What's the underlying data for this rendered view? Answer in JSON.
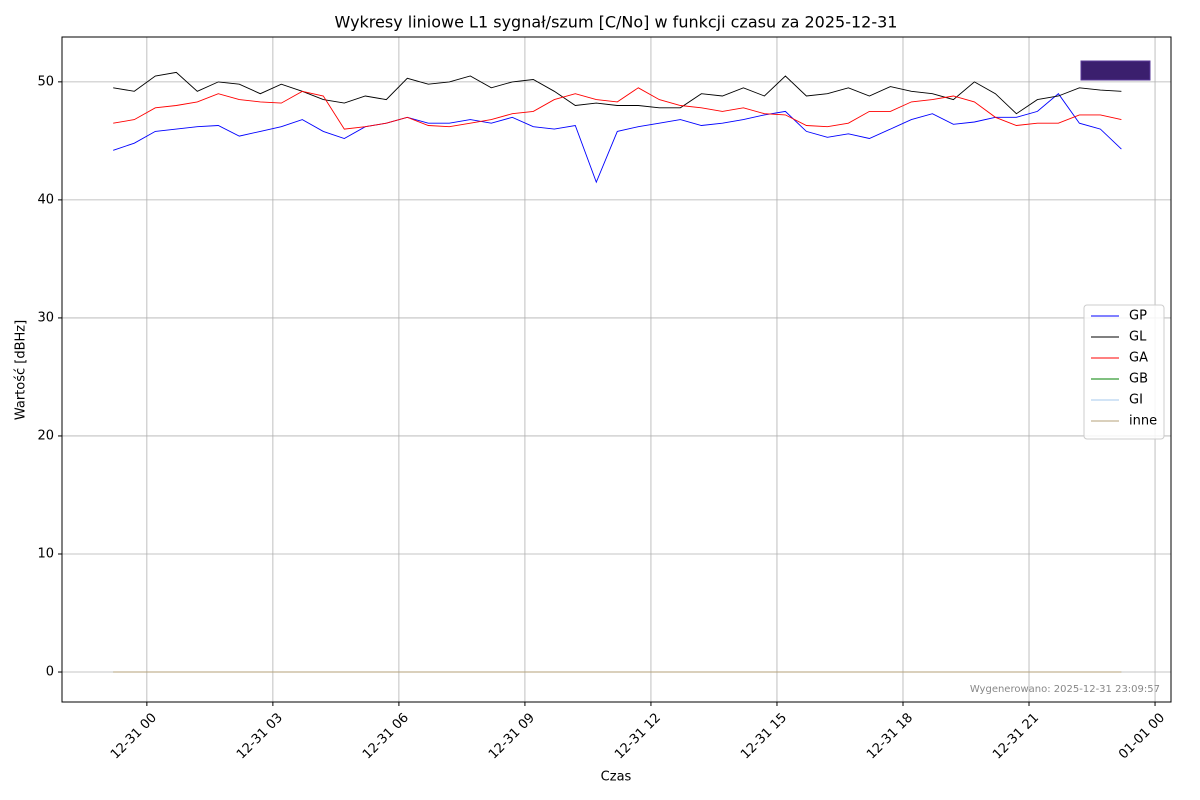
{
  "chart_data": {
    "type": "line",
    "title": "Wykresy liniowe L1 sygnał/szum [C/No] w funkcji czasu za 2025-12-31",
    "xlabel": "Czas",
    "ylabel": "Wartość [dBHz]",
    "annotation": "Wygenerowano: 2025-12-31 23:09:57",
    "x": [
      -0.8,
      -0.3,
      0.2,
      0.7,
      1.2,
      1.7,
      2.2,
      2.7,
      3.2,
      3.7,
      4.2,
      4.7,
      5.2,
      5.7,
      6.2,
      6.7,
      7.2,
      7.7,
      8.2,
      8.7,
      9.2,
      9.7,
      10.2,
      10.7,
      11.2,
      11.7,
      12.2,
      12.7,
      13.2,
      13.7,
      14.2,
      14.7,
      15.2,
      15.7,
      16.2,
      16.7,
      17.2,
      17.7,
      18.2,
      18.7,
      19.2,
      19.7,
      20.2,
      20.7,
      21.2,
      21.7,
      22.2,
      22.7,
      23.2
    ],
    "series": [
      {
        "name": "GP",
        "color": "#0000ff",
        "values": [
          44.2,
          44.8,
          45.8,
          46.0,
          46.2,
          46.3,
          45.4,
          45.8,
          46.2,
          46.8,
          45.8,
          45.2,
          46.2,
          46.5,
          47.0,
          46.5,
          46.5,
          46.8,
          46.5,
          47.0,
          46.2,
          46.0,
          46.3,
          41.5,
          45.8,
          46.2,
          46.5,
          46.8,
          46.3,
          46.5,
          46.8,
          47.2,
          47.5,
          45.8,
          45.3,
          45.6,
          45.2,
          46.0,
          46.8,
          47.3,
          46.4,
          46.6,
          47.0,
          47.0,
          47.5,
          49.0,
          46.5,
          46.0,
          44.3
        ]
      },
      {
        "name": "GL",
        "color": "#000000",
        "values": [
          49.5,
          49.2,
          50.5,
          50.8,
          49.2,
          50.0,
          49.8,
          49.0,
          49.8,
          49.2,
          48.5,
          48.2,
          48.8,
          48.5,
          50.3,
          49.8,
          50.0,
          50.5,
          49.5,
          50.0,
          50.2,
          49.2,
          48.0,
          48.2,
          48.0,
          48.0,
          47.8,
          47.8,
          49.0,
          48.8,
          49.5,
          48.8,
          50.5,
          48.8,
          49.0,
          49.5,
          48.8,
          49.6,
          49.2,
          49.0,
          48.5,
          50.0,
          49.0,
          47.3,
          48.5,
          48.8,
          49.5,
          49.3,
          49.2
        ]
      },
      {
        "name": "GA",
        "color": "#ff0000",
        "values": [
          46.5,
          46.8,
          47.8,
          48.0,
          48.3,
          49.0,
          48.5,
          48.3,
          48.2,
          49.2,
          48.8,
          46.0,
          46.2,
          46.5,
          47.0,
          46.3,
          46.2,
          46.5,
          46.8,
          47.3,
          47.5,
          48.5,
          49.0,
          48.5,
          48.3,
          49.5,
          48.5,
          48.0,
          47.8,
          47.5,
          47.8,
          47.3,
          47.2,
          46.3,
          46.2,
          46.5,
          47.5,
          47.5,
          48.3,
          48.5,
          48.8,
          48.3,
          47.0,
          46.3,
          46.5,
          46.5,
          47.2,
          47.2,
          46.8
        ]
      },
      {
        "name": "GB",
        "color": "#008000",
        "values": [
          0,
          0,
          0,
          0,
          0,
          0,
          0,
          0,
          0,
          0,
          0,
          0,
          0,
          0,
          0,
          0,
          0,
          0,
          0,
          0,
          0,
          0,
          0,
          0,
          0,
          0,
          0,
          0,
          0,
          0,
          0,
          0,
          0,
          0,
          0,
          0,
          0,
          0,
          0,
          0,
          0,
          0,
          0,
          0,
          0,
          0,
          0,
          0,
          0
        ]
      },
      {
        "name": "GI",
        "color": "#a6c8ec",
        "values": [
          0,
          0,
          0,
          0,
          0,
          0,
          0,
          0,
          0,
          0,
          0,
          0,
          0,
          0,
          0,
          0,
          0,
          0,
          0,
          0,
          0,
          0,
          0,
          0,
          0,
          0,
          0,
          0,
          0,
          0,
          0,
          0,
          0,
          0,
          0,
          0,
          0,
          0,
          0,
          0,
          0,
          0,
          0,
          0,
          0,
          0,
          0,
          0,
          0
        ]
      },
      {
        "name": "inne",
        "color": "#b5a27a",
        "values": [
          0,
          0,
          0,
          0,
          0,
          0,
          0,
          0,
          0,
          0,
          0,
          0,
          0,
          0,
          0,
          0,
          0,
          0,
          0,
          0,
          0,
          0,
          0,
          0,
          0,
          0,
          0,
          0,
          0,
          0,
          0,
          0,
          0,
          0,
          0,
          0,
          0,
          0,
          0,
          0,
          0,
          0,
          0,
          0,
          0,
          0,
          0,
          0,
          0
        ]
      }
    ],
    "xlim": [
      -2.02,
      24.38
    ],
    "xticks": [
      {
        "value": 0,
        "label": "12-31 00"
      },
      {
        "value": 3,
        "label": "12-31 03"
      },
      {
        "value": 6,
        "label": "12-31 06"
      },
      {
        "value": 9,
        "label": "12-31 09"
      },
      {
        "value": 12,
        "label": "12-31 12"
      },
      {
        "value": 15,
        "label": "12-31 15"
      },
      {
        "value": 18,
        "label": "12-31 18"
      },
      {
        "value": 21,
        "label": "12-31 21"
      },
      {
        "value": 24,
        "label": "01-01 00"
      }
    ],
    "ylim": [
      -2.54,
      53.8
    ],
    "yticks": [
      0,
      10,
      20,
      30,
      40,
      50
    ],
    "grid": true,
    "legend": "right"
  }
}
